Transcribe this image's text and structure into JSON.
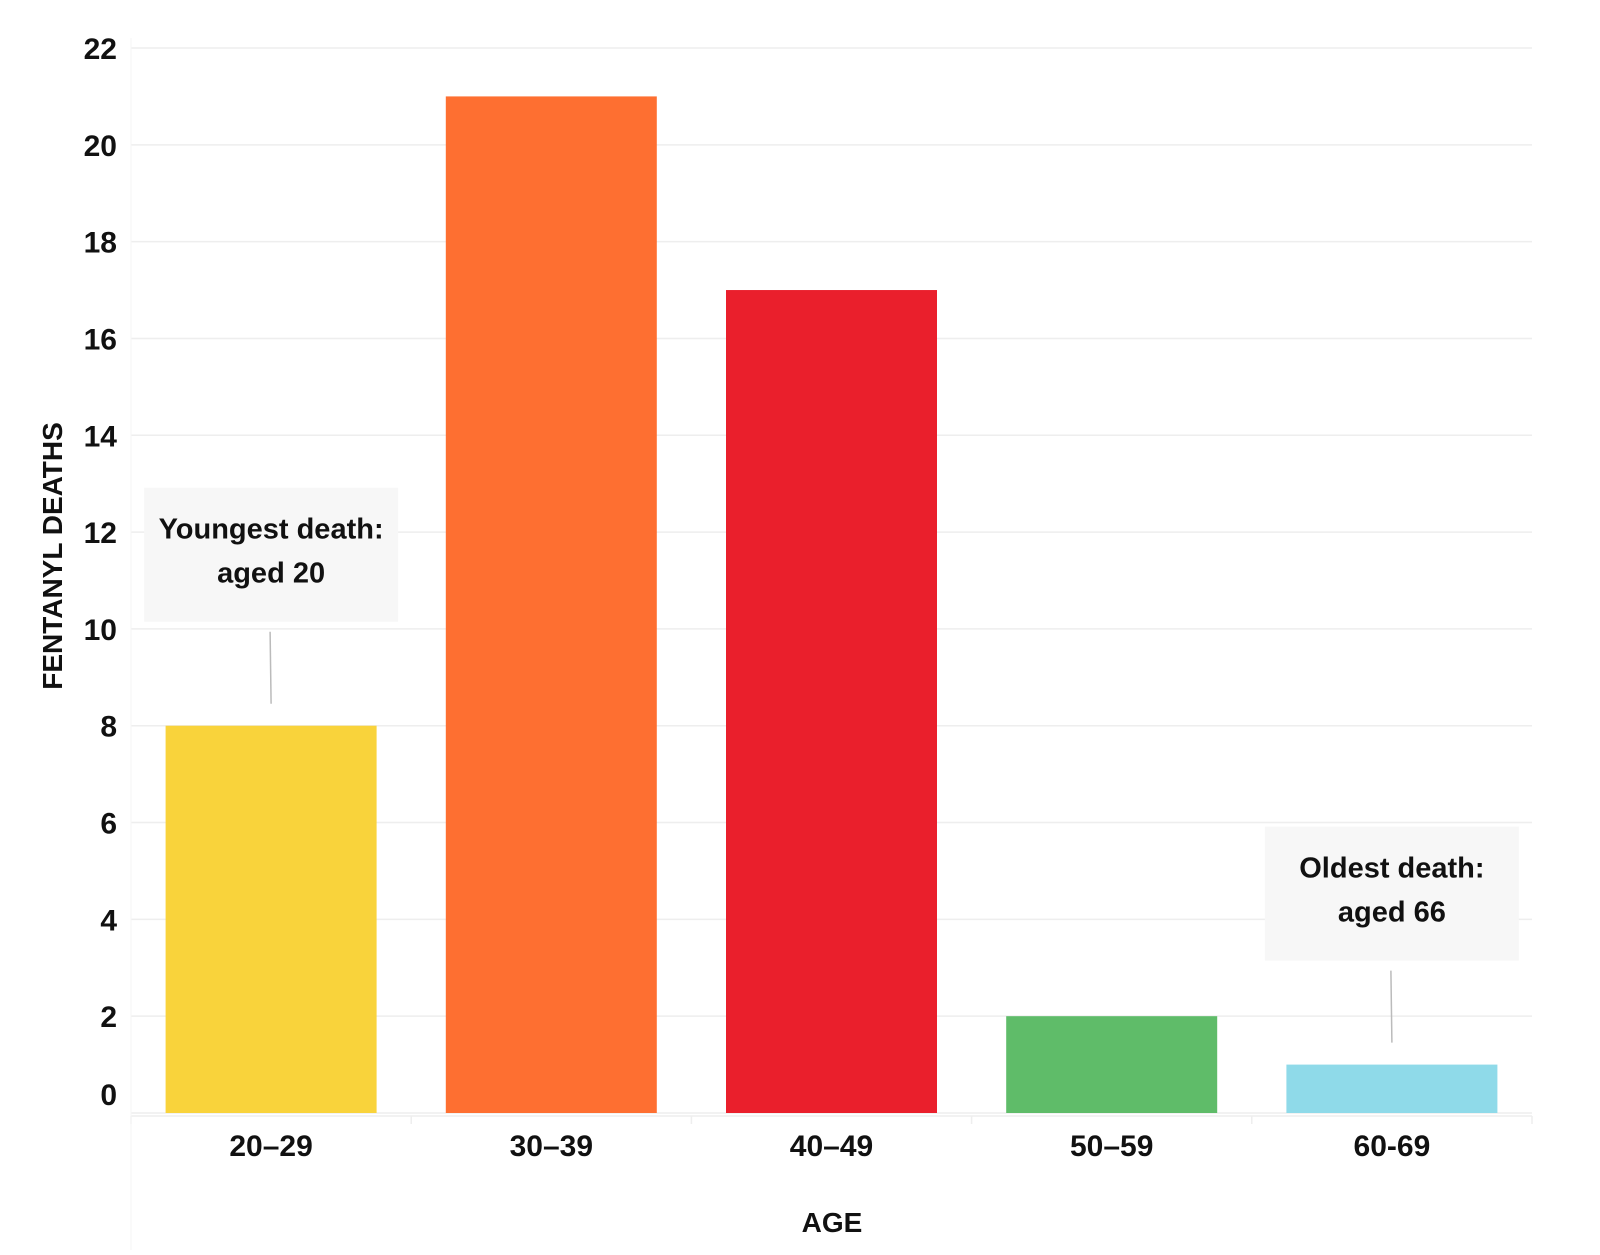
{
  "chart_data": {
    "type": "bar",
    "categories": [
      "20–29",
      "30–39",
      "40–49",
      "50–59",
      "60-69"
    ],
    "values": [
      8,
      21,
      17,
      2,
      1
    ],
    "colors": [
      "#f9d33b",
      "#fe6f31",
      "#ea1f2c",
      "#5fbc69",
      "#8fdae9"
    ],
    "xlabel": "AGE",
    "ylabel": "FENTANYL DEATHS",
    "ylim": [
      0,
      22
    ],
    "yticks": [
      0,
      2,
      4,
      6,
      8,
      10,
      12,
      14,
      16,
      18,
      20,
      22
    ],
    "grid": true,
    "annotations": [
      {
        "category": "20–29",
        "lines": [
          "Youngest death:",
          "aged 20"
        ]
      },
      {
        "category": "60-69",
        "lines": [
          "Oldest death:",
          "aged 66"
        ]
      }
    ]
  },
  "colors": {
    "grid": "#eeeeee",
    "text": "#111111",
    "annotation_bg": "#f7f7f7",
    "annotation_line": "#bbbbbb"
  }
}
